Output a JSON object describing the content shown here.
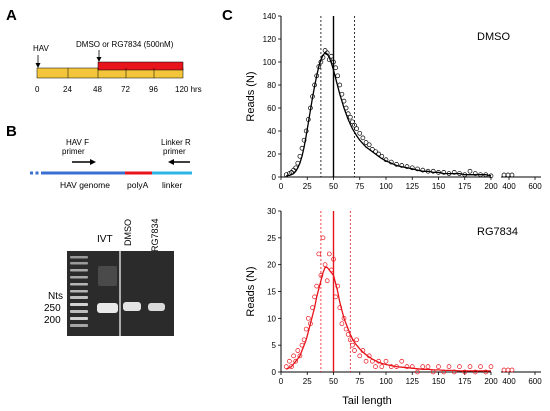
{
  "panels": {
    "a_letter": "A",
    "b_letter": "B",
    "c_letter": "C"
  },
  "timeline": {
    "hav_label": "HAV",
    "treatment_label": "DMSO or RG7834 (500nM)",
    "ticks": [
      "0",
      "24",
      "48",
      "72",
      "96",
      "120 hrs"
    ],
    "colors": {
      "pre": "#f3c53a",
      "treat": "#e8141c"
    }
  },
  "construct": {
    "primer_f": "HAV F\nprimer",
    "primer_r": "Linker R\nprimer",
    "segments": [
      "HAV genome",
      "polyA",
      "linker"
    ],
    "colors": {
      "genome": "#3a6fd2",
      "polya": "#e8141c",
      "linker": "#2bb6e6"
    }
  },
  "gel": {
    "nts_label": "Nts",
    "markers": [
      "250",
      "200"
    ],
    "lanes": [
      "IVT",
      "DMSO",
      "RG7834"
    ]
  },
  "chart_data": [
    {
      "type": "scatter",
      "title": "DMSO",
      "xlabel": "",
      "ylabel": "Reads (N)",
      "xticks": [
        "0",
        "25",
        "50",
        "75",
        "100",
        "125",
        "150",
        "175",
        "200",
        "400",
        "600"
      ],
      "ylim": [
        0,
        140
      ],
      "yticks": [
        "0",
        "20",
        "40",
        "60",
        "80",
        "100",
        "120",
        "140"
      ],
      "color": "#000000",
      "median": 50,
      "range": [
        38,
        70
      ],
      "x": [
        5,
        8,
        10,
        12,
        14,
        16,
        18,
        20,
        22,
        24,
        26,
        28,
        30,
        32,
        34,
        36,
        38,
        40,
        42,
        44,
        46,
        48,
        50,
        52,
        54,
        56,
        58,
        60,
        62,
        64,
        66,
        68,
        70,
        72,
        75,
        78,
        81,
        84,
        87,
        90,
        93,
        96,
        100,
        105,
        110,
        115,
        120,
        125,
        130,
        135,
        140,
        145,
        150,
        155,
        160,
        165,
        170,
        175,
        180,
        185,
        190,
        195,
        200
      ],
      "y": [
        2,
        3,
        4,
        6,
        8,
        12,
        18,
        25,
        32,
        40,
        50,
        60,
        70,
        80,
        88,
        96,
        100,
        104,
        110,
        108,
        102,
        105,
        100,
        95,
        88,
        80,
        72,
        66,
        60,
        55,
        52,
        48,
        45,
        42,
        38,
        34,
        30,
        28,
        24,
        22,
        20,
        18,
        15,
        13,
        11,
        10,
        9,
        8,
        7,
        6,
        5,
        5,
        4,
        4,
        3,
        4,
        3,
        2,
        5,
        3,
        2,
        2,
        1
      ],
      "fit": [
        1,
        1.5,
        2,
        3,
        5,
        8,
        12,
        18,
        26,
        36,
        47,
        58,
        69,
        79,
        88,
        96,
        102,
        106,
        108,
        107,
        104,
        99,
        93,
        86,
        79,
        72,
        66,
        60,
        55,
        50,
        46,
        42,
        39,
        36,
        32,
        29,
        26,
        24,
        22,
        20,
        18,
        16,
        14,
        12,
        10,
        9,
        8,
        7,
        6,
        5,
        5,
        4,
        4,
        3,
        3,
        3,
        3,
        2,
        2,
        2,
        2,
        2,
        1
      ]
    },
    {
      "type": "scatter",
      "title": "RG7834",
      "xlabel": "Tail length",
      "ylabel": "Reads (N)",
      "xticks": [
        "0",
        "25",
        "50",
        "75",
        "100",
        "125",
        "150",
        "175",
        "200",
        "400",
        "600"
      ],
      "ylim": [
        0,
        30
      ],
      "yticks": [
        "0",
        "5",
        "10",
        "15",
        "20",
        "25",
        "30"
      ],
      "color": "#e8141c",
      "median": 50,
      "range": [
        38,
        66
      ],
      "x": [
        5,
        8,
        10,
        12,
        14,
        16,
        18,
        20,
        22,
        24,
        26,
        28,
        30,
        32,
        34,
        36,
        38,
        40,
        42,
        44,
        46,
        48,
        50,
        52,
        54,
        56,
        58,
        60,
        62,
        64,
        66,
        68,
        70,
        72,
        75,
        78,
        81,
        84,
        87,
        90,
        93,
        96,
        100,
        105,
        110,
        115,
        120,
        125,
        130,
        135,
        140,
        145,
        150,
        155,
        160,
        165,
        170,
        175,
        180,
        185,
        190,
        195,
        200
      ],
      "y": [
        1,
        2,
        1,
        3,
        2,
        4,
        3,
        5,
        6,
        8,
        10,
        9,
        12,
        14,
        16,
        22,
        18,
        25,
        20,
        17,
        22,
        19,
        21,
        14,
        16,
        12,
        9,
        10,
        8,
        7,
        6,
        5,
        4,
        6,
        3,
        4,
        2,
        3,
        2,
        1,
        2,
        1,
        2,
        1,
        1,
        2,
        1,
        1,
        0,
        1,
        1,
        0,
        1,
        0,
        1,
        0,
        1,
        0,
        1,
        0,
        1,
        0,
        1
      ],
      "fit": [
        0.5,
        0.8,
        1,
        1.5,
        2,
        2.5,
        3,
        4,
        5,
        6,
        7.5,
        9,
        10.5,
        12,
        14,
        15.5,
        17,
        18.5,
        19.5,
        19.5,
        19,
        18.5,
        18,
        16.5,
        15,
        13,
        11.5,
        10,
        9,
        8,
        7,
        6.2,
        5.5,
        5,
        4.3,
        3.7,
        3.2,
        2.8,
        2.4,
        2.1,
        1.8,
        1.6,
        1.4,
        1.2,
        1,
        0.9,
        0.8,
        0.7,
        0.6,
        0.5,
        0.5,
        0.4,
        0.4,
        0.3,
        0.3,
        0.3,
        0.2,
        0.2,
        0.2,
        0.2,
        0.2,
        0.2,
        0.2
      ]
    }
  ]
}
